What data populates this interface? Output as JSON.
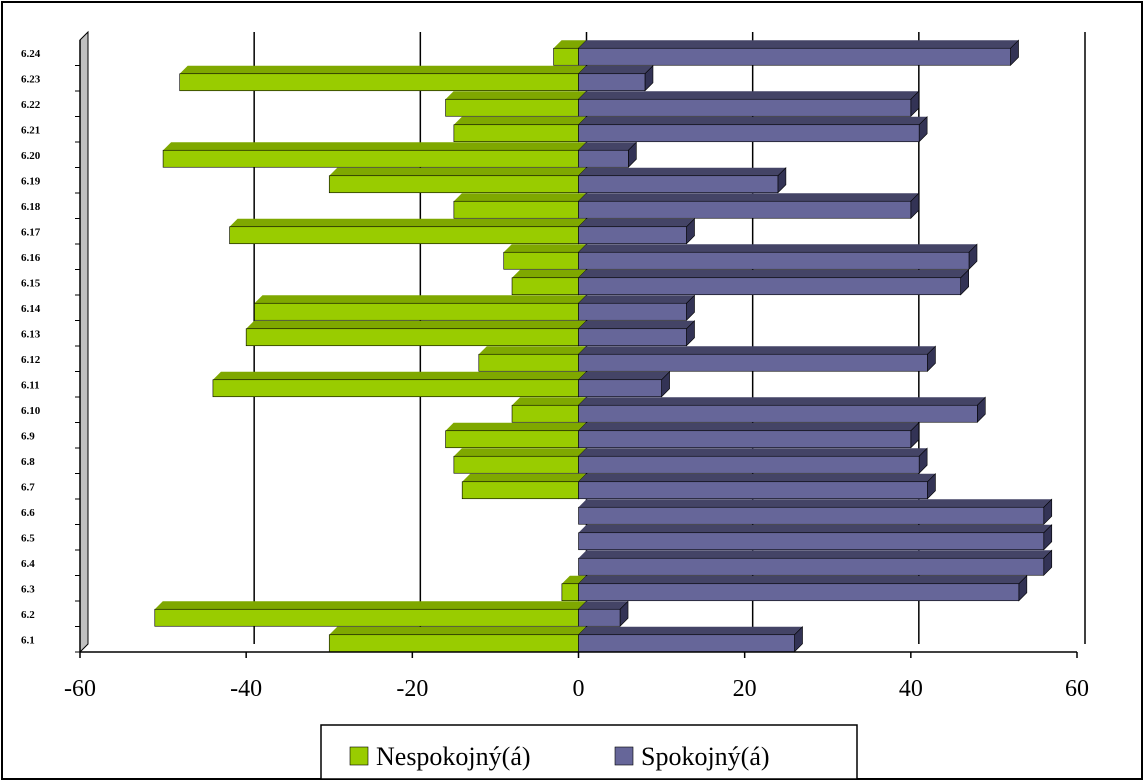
{
  "chart_data": {
    "type": "bar",
    "orientation": "horizontal",
    "categories": [
      "6.1",
      "6.2",
      "6.3",
      "6.4",
      "6.5",
      "6.6",
      "6.7",
      "6.8",
      "6.9",
      "6.10",
      "6.11",
      "6.12",
      "6.13",
      "6.14",
      "6.15",
      "6.16",
      "6.17",
      "6.18",
      "6.19",
      "6.20",
      "6.21",
      "6.22",
      "6.23",
      "6.24"
    ],
    "series": [
      {
        "name": "Nespokojný(á)",
        "color": "#99cc00",
        "values": [
          -30,
          -51,
          -2,
          0,
          0,
          0,
          -14,
          -15,
          -16,
          -8,
          -44,
          -12,
          -40,
          -39,
          -8,
          -9,
          -42,
          -15,
          -30,
          -50,
          -15,
          -16,
          -48,
          -3
        ]
      },
      {
        "name": "Spokojný(á)",
        "color": "#666699",
        "values": [
          26,
          5,
          53,
          56,
          56,
          56,
          42,
          41,
          40,
          48,
          10,
          42,
          13,
          13,
          46,
          47,
          13,
          40,
          24,
          6,
          41,
          40,
          8,
          52
        ]
      }
    ],
    "xlim": [
      -60,
      60
    ],
    "xticks": [
      -60,
      -40,
      -20,
      0,
      20,
      40,
      60
    ],
    "grid": "vertical",
    "legend": "bottom"
  }
}
